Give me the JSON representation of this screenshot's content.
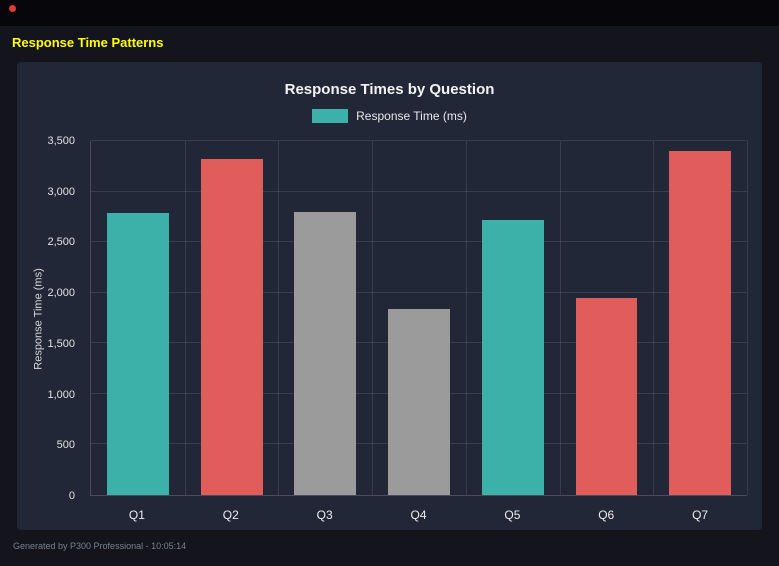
{
  "page": {
    "title": "Response Time Patterns",
    "footer": "Generated by P300 Professional - 10:05:14"
  },
  "colors": {
    "accent_yellow": "#ffff00",
    "teal": "#3bb1a9",
    "red": "#e15d5c",
    "gray": "#9b9b9b",
    "panel_bg": "#212737",
    "page_bg": "#14141d"
  },
  "chart_data": {
    "type": "bar",
    "title": "Response Times by Question",
    "legend": [
      {
        "label": "Response Time (ms)",
        "color": "#3bb1a9"
      }
    ],
    "legend_position": "top",
    "ylabel": "Response Time (ms)",
    "xlabel": "",
    "ylim": [
      0,
      3500
    ],
    "grid": true,
    "yticks": [
      {
        "value": 0,
        "label": "0"
      },
      {
        "value": 500,
        "label": "500"
      },
      {
        "value": 1000,
        "label": "1,000"
      },
      {
        "value": 1500,
        "label": "1,500"
      },
      {
        "value": 2000,
        "label": "2,000"
      },
      {
        "value": 2500,
        "label": "2,500"
      },
      {
        "value": 3000,
        "label": "3,000"
      },
      {
        "value": 3500,
        "label": "3,500"
      }
    ],
    "categories": [
      "Q1",
      "Q2",
      "Q3",
      "Q4",
      "Q5",
      "Q6",
      "Q7"
    ],
    "series": [
      {
        "name": "Response Time (ms)",
        "values": [
          2790,
          3320,
          2800,
          1840,
          2720,
          1950,
          3400
        ],
        "colors": [
          "#3bb1a9",
          "#e15d5c",
          "#9b9b9b",
          "#9b9b9b",
          "#3bb1a9",
          "#e15d5c",
          "#e15d5c"
        ]
      }
    ]
  }
}
